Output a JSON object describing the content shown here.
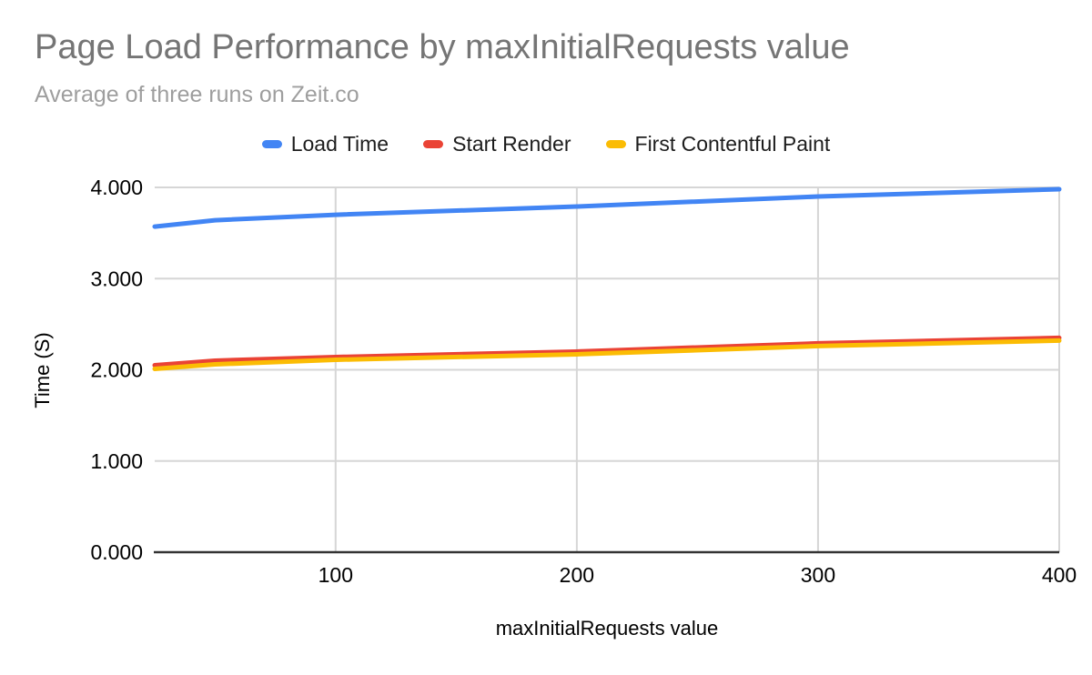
{
  "chart_data": {
    "type": "line",
    "title": "Page Load Performance by maxInitialRequests value",
    "subtitle": "Average of three runs on Zeit.co",
    "xlabel": "maxInitialRequests value",
    "ylabel": "Time (S)",
    "x": [
      25,
      50,
      100,
      200,
      300,
      400
    ],
    "series": [
      {
        "name": "Load Time",
        "color": "#4285f4",
        "values": [
          3.57,
          3.64,
          3.7,
          3.79,
          3.9,
          3.98
        ]
      },
      {
        "name": "Start Render",
        "color": "#ea4335",
        "values": [
          2.05,
          2.1,
          2.14,
          2.2,
          2.29,
          2.35
        ]
      },
      {
        "name": "First Contentful Paint",
        "color": "#fbbc04",
        "values": [
          2.01,
          2.06,
          2.11,
          2.17,
          2.26,
          2.32
        ]
      }
    ],
    "xlim": [
      25,
      400
    ],
    "ylim": [
      0,
      4
    ],
    "x_ticks": [
      100,
      200,
      300,
      400
    ],
    "x_tick_labels": [
      "100",
      "200",
      "300",
      "400"
    ],
    "y_ticks": [
      0,
      1,
      2,
      3,
      4
    ],
    "y_tick_labels": [
      "0.000",
      "1.000",
      "2.000",
      "3.000",
      "4.000"
    ],
    "grid": true,
    "legend_position": "top"
  },
  "colors": {
    "title": "#757575",
    "subtitle": "#9e9e9e",
    "gridline": "#d6d6d6",
    "axis_line": "#333333",
    "tick_label": "#000000",
    "background": "#ffffff"
  }
}
